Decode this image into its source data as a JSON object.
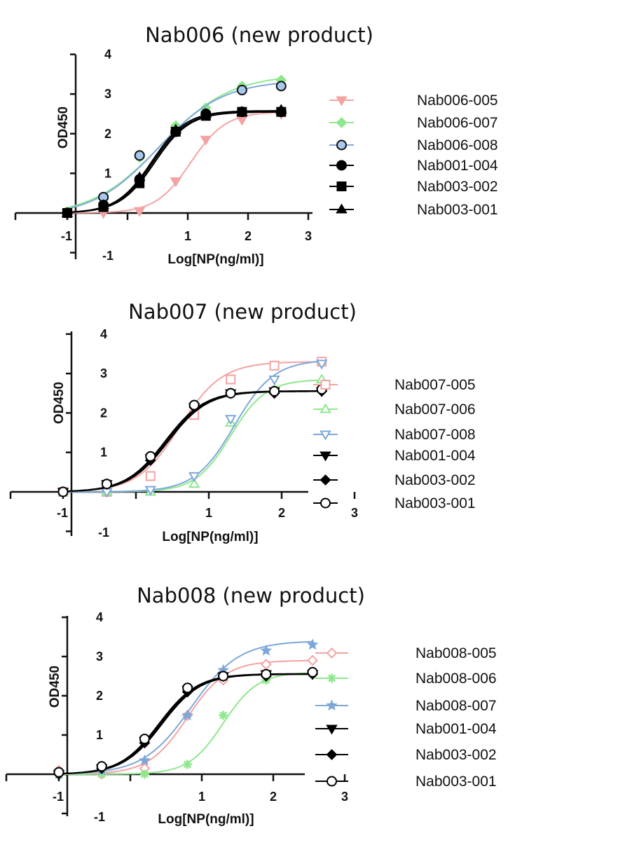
{
  "chart_data": [
    {
      "type": "line",
      "title": "Nab006 (new product)",
      "xlabel": "Log[NP(ng/ml)]",
      "ylabel": "OD450",
      "xlim": [
        -1,
        3
      ],
      "ylim": [
        -1,
        4
      ],
      "x_ticks": [
        "-1",
        "1",
        "2",
        "3"
      ],
      "y_ticks": [
        "-1",
        "1",
        "2",
        "3",
        "4"
      ],
      "grid": false,
      "legend_position": "right",
      "x": [
        -1,
        -0.4,
        0.2,
        0.8,
        1.3,
        1.9,
        2.55
      ],
      "series": [
        {
          "name": "Nab006-005",
          "color": "#f4a3a3",
          "marker": "triangle-down",
          "values": [
            0.0,
            0.0,
            0.05,
            0.8,
            1.85,
            2.35,
            2.5
          ],
          "fit": {
            "bottom": 0.0,
            "top": 2.55,
            "ec50": 1.05,
            "hill": 1.5
          }
        },
        {
          "name": "Nab006-007",
          "color": "#8de88d",
          "marker": "diamond",
          "values": [
            0.0,
            0.35,
            1.4,
            2.2,
            2.65,
            3.2,
            3.35
          ],
          "fit": {
            "bottom": -0.1,
            "top": 3.5,
            "ec50": 0.55,
            "hill": 0.75
          }
        },
        {
          "name": "Nab006-008",
          "color": "#7da7d9",
          "marker": "circle-outlined",
          "values": [
            0.0,
            0.4,
            1.45,
            2.05,
            2.5,
            3.1,
            3.2
          ],
          "fit": {
            "bottom": -0.1,
            "top": 3.35,
            "ec50": 0.5,
            "hill": 0.8
          }
        },
        {
          "name": "Nab001-004",
          "color": "#000000",
          "marker": "circle",
          "values": [
            0.0,
            0.2,
            0.85,
            2.05,
            2.5,
            2.55,
            2.55
          ],
          "fit": {
            "bottom": 0.0,
            "top": 2.55,
            "ec50": 0.42,
            "hill": 1.5
          }
        },
        {
          "name": "Nab003-002",
          "color": "#000000",
          "marker": "square",
          "values": [
            0.0,
            0.15,
            0.75,
            2.05,
            2.45,
            2.55,
            2.55
          ],
          "fit": {
            "bottom": 0.0,
            "top": 2.55,
            "ec50": 0.45,
            "hill": 1.5
          }
        },
        {
          "name": "Nab003-001",
          "color": "#000000",
          "marker": "triangle-up",
          "values": [
            0.0,
            0.2,
            0.9,
            2.1,
            2.5,
            2.55,
            2.6
          ],
          "fit": {
            "bottom": 0.0,
            "top": 2.58,
            "ec50": 0.4,
            "hill": 1.5
          }
        }
      ]
    },
    {
      "type": "line",
      "title": "Nab007 (new product)",
      "xlabel": "Log[NP(ng/ml)]",
      "ylabel": "OD450",
      "xlim": [
        -1,
        3
      ],
      "ylim": [
        -1,
        4
      ],
      "x_ticks": [
        "-1",
        "1",
        "2",
        "3"
      ],
      "y_ticks": [
        "-1",
        "1",
        "2",
        "3",
        "4"
      ],
      "grid": false,
      "legend_position": "right",
      "x": [
        -1,
        -0.4,
        0.2,
        0.8,
        1.3,
        1.9,
        2.55
      ],
      "series": [
        {
          "name": "Nab007-005",
          "color": "#f4a3a3",
          "marker": "square-open",
          "values": [
            0.0,
            0.0,
            0.4,
            1.95,
            2.85,
            3.2,
            3.3
          ],
          "fit": {
            "bottom": 0.0,
            "top": 3.3,
            "ec50": 0.6,
            "hill": 1.5
          }
        },
        {
          "name": "Nab007-006",
          "color": "#8de88d",
          "marker": "triangle-up-open",
          "values": [
            0.0,
            0.0,
            0.0,
            0.2,
            1.75,
            2.6,
            2.85
          ],
          "fit": {
            "bottom": 0.0,
            "top": 2.85,
            "ec50": 1.3,
            "hill": 1.8
          }
        },
        {
          "name": "Nab007-008",
          "color": "#7da7d9",
          "marker": "triangle-down-open",
          "values": [
            0.0,
            0.0,
            0.05,
            0.4,
            1.85,
            2.85,
            3.25
          ],
          "fit": {
            "bottom": 0.0,
            "top": 3.35,
            "ec50": 1.35,
            "hill": 1.6
          }
        },
        {
          "name": "Nab001-004",
          "color": "#000000",
          "marker": "triangle-down",
          "values": [
            0.0,
            0.2,
            0.85,
            2.15,
            2.5,
            2.55,
            2.55
          ],
          "fit": {
            "bottom": 0.0,
            "top": 2.55,
            "ec50": 0.42,
            "hill": 1.6
          }
        },
        {
          "name": "Nab003-002",
          "color": "#000000",
          "marker": "diamond",
          "values": [
            0.0,
            0.2,
            0.8,
            2.15,
            2.5,
            2.5,
            2.55
          ],
          "fit": {
            "bottom": 0.0,
            "top": 2.55,
            "ec50": 0.44,
            "hill": 1.6
          }
        },
        {
          "name": "Nab003-001",
          "color": "#000000",
          "marker": "circle-open",
          "values": [
            0.0,
            0.2,
            0.9,
            2.2,
            2.5,
            2.55,
            2.6
          ],
          "fit": {
            "bottom": 0.0,
            "top": 2.56,
            "ec50": 0.4,
            "hill": 1.6
          }
        }
      ]
    },
    {
      "type": "line",
      "title": "Nab008 (new product)",
      "xlabel": "Log[NP(ng/ml)]",
      "ylabel": "OD450",
      "xlim": [
        -1,
        3
      ],
      "ylim": [
        -1,
        4
      ],
      "x_ticks": [
        "-1",
        "1",
        "2",
        "3"
      ],
      "y_ticks": [
        "-1",
        "1",
        "2",
        "3",
        "4"
      ],
      "grid": false,
      "legend_position": "right",
      "x": [
        -1,
        -0.4,
        0.2,
        0.8,
        1.3,
        1.9,
        2.55
      ],
      "series": [
        {
          "name": "Nab008-005",
          "color": "#f4a3a3",
          "marker": "diamond-open",
          "values": [
            0.1,
            0.0,
            0.15,
            1.5,
            2.4,
            2.8,
            2.9
          ],
          "fit": {
            "bottom": 0.0,
            "top": 2.9,
            "ec50": 0.8,
            "hill": 1.6
          }
        },
        {
          "name": "Nab008-006",
          "color": "#8de88d",
          "marker": "asterisk",
          "values": [
            0.0,
            0.0,
            0.0,
            0.25,
            1.5,
            2.4,
            2.55
          ],
          "fit": {
            "bottom": 0.0,
            "top": 2.6,
            "ec50": 1.3,
            "hill": 1.8
          }
        },
        {
          "name": "Nab008-007",
          "color": "#7da7d9",
          "marker": "star",
          "values": [
            0.0,
            0.1,
            0.35,
            1.5,
            2.65,
            3.15,
            3.3
          ],
          "fit": {
            "bottom": 0.0,
            "top": 3.4,
            "ec50": 0.85,
            "hill": 1.3
          }
        },
        {
          "name": "Nab001-004",
          "color": "#000000",
          "marker": "triangle-down",
          "values": [
            0.0,
            0.15,
            0.85,
            2.15,
            2.5,
            2.55,
            2.55
          ],
          "fit": {
            "bottom": 0.0,
            "top": 2.55,
            "ec50": 0.42,
            "hill": 1.6
          }
        },
        {
          "name": "Nab003-002",
          "color": "#000000",
          "marker": "diamond",
          "values": [
            0.0,
            0.15,
            0.8,
            2.1,
            2.5,
            2.5,
            2.55
          ],
          "fit": {
            "bottom": 0.0,
            "top": 2.55,
            "ec50": 0.44,
            "hill": 1.6
          }
        },
        {
          "name": "Nab003-001",
          "color": "#000000",
          "marker": "circle-open",
          "values": [
            0.05,
            0.2,
            0.9,
            2.2,
            2.5,
            2.55,
            2.6
          ],
          "fit": {
            "bottom": 0.0,
            "top": 2.56,
            "ec50": 0.4,
            "hill": 1.6
          }
        }
      ]
    }
  ]
}
